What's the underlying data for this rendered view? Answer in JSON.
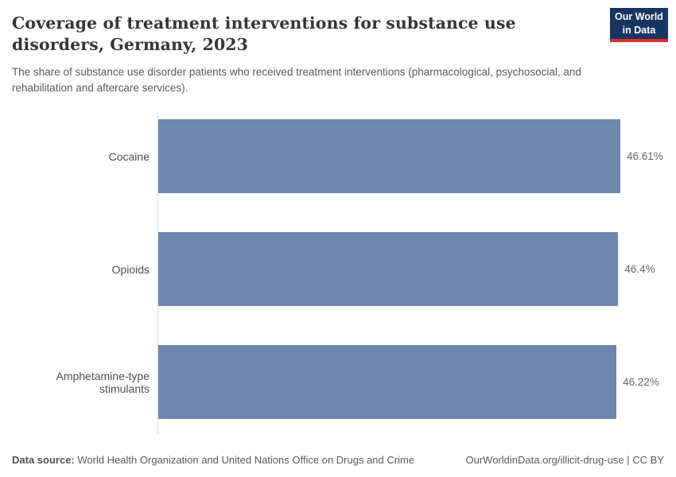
{
  "header": {
    "title": "Coverage of treatment interventions for substance use disorders, Germany, 2023",
    "subtitle": "The share of substance use disorder patients who received treatment interventions (pharmacological, psychosocial, and rehabilitation and aftercare services)."
  },
  "logo": {
    "line1": "Our World",
    "line2": "in Data"
  },
  "chart_data": {
    "type": "bar",
    "orientation": "horizontal",
    "title": "Coverage of treatment interventions for substance use disorders, Germany, 2023",
    "categories": [
      "Cocaine",
      "Opioids",
      "Amphetamine-type stimulants"
    ],
    "values": [
      46.61,
      46.4,
      46.22
    ],
    "value_labels": [
      "46.61%",
      "46.4%",
      "46.22%"
    ],
    "unit": "%",
    "xlabel": "",
    "ylabel": "",
    "xlim": [
      0,
      46.61
    ],
    "axis_max": 46.61,
    "grid": false,
    "legend": "none"
  },
  "footer": {
    "datasource_label": "Data source:",
    "datasource_text": " World Health Organization and United Nations Office on Drugs and Crime",
    "link_text": "OurWorldinData.org/illicit-drug-use | CC BY"
  },
  "colors": {
    "bar": "#6e87ae",
    "logo-navy": "#18355f",
    "logo-red": "#d7342a",
    "axis": "#dedede"
  }
}
